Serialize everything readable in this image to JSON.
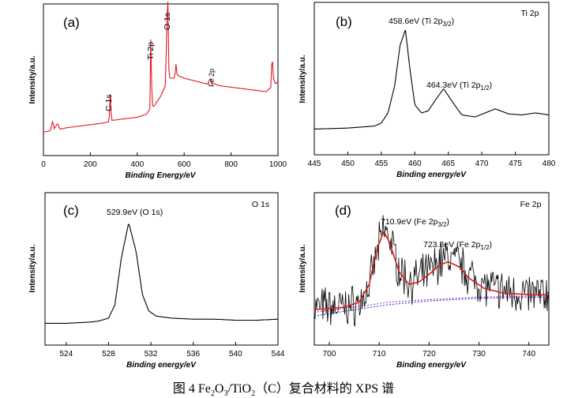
{
  "caption": {
    "prefix": "图 4 Fe",
    "s1": "2",
    "mid1": "O",
    "s2": "3",
    "mid2": "/TiO",
    "s3": "2",
    "suffix": "（C）复合材料的 XPS 谱"
  },
  "chart_data": [
    {
      "type": "line",
      "panel": "(a)",
      "xlabel": "Binding Energy/eV",
      "ylabel": "Intensity/a.u.",
      "xlim": [
        0,
        1000
      ],
      "xticks": [
        0,
        200,
        400,
        600,
        800,
        1000
      ],
      "color": "#e8141c",
      "peaks": [
        {
          "label": "C 1s",
          "x": 285
        },
        {
          "label": "Ti 2p",
          "x": 459
        },
        {
          "label": "O 1s",
          "x": 530
        },
        {
          "label": "Fe 2p",
          "x": 711
        }
      ],
      "x": [
        0,
        30,
        40,
        45,
        60,
        70,
        100,
        150,
        200,
        250,
        280,
        285,
        290,
        300,
        350,
        400,
        440,
        455,
        459,
        462,
        465,
        470,
        500,
        520,
        530,
        535,
        540,
        560,
        565,
        570,
        600,
        650,
        700,
        711,
        715,
        750,
        800,
        850,
        900,
        950,
        970,
        975,
        980,
        990,
        1000
      ],
      "y": [
        0.04,
        0.05,
        0.12,
        0.06,
        0.1,
        0.06,
        0.07,
        0.08,
        0.09,
        0.1,
        0.11,
        0.3,
        0.12,
        0.12,
        0.13,
        0.14,
        0.16,
        0.2,
        0.88,
        0.25,
        0.22,
        0.21,
        0.28,
        0.35,
        1.0,
        0.42,
        0.4,
        0.4,
        0.5,
        0.42,
        0.4,
        0.38,
        0.36,
        0.4,
        0.37,
        0.35,
        0.34,
        0.33,
        0.32,
        0.31,
        0.34,
        0.58,
        0.4,
        0.36,
        0.38
      ]
    },
    {
      "type": "line",
      "panel": "(b)",
      "corner_label": "Ti 2p",
      "xlabel": "Binding energy/eV",
      "ylabel": "Intensity/a.u.",
      "xlim": [
        445,
        480
      ],
      "xticks": [
        445,
        450,
        455,
        460,
        465,
        470,
        475,
        480
      ],
      "color": "#000000",
      "annotations": [
        {
          "text": "458.6eV (Ti 2p",
          "sub": "3/2",
          "end": ")",
          "x": 458.6
        },
        {
          "text": "464.3eV (Ti 2p",
          "sub": "1/2",
          "end": ")",
          "x": 464.3
        }
      ],
      "x": [
        445,
        450,
        454,
        455,
        456,
        457,
        457.8,
        458.6,
        459.3,
        460,
        461,
        462,
        463,
        464.3,
        465.5,
        467,
        469,
        472,
        474,
        476,
        478,
        480
      ],
      "y": [
        0.02,
        0.03,
        0.05,
        0.08,
        0.18,
        0.45,
        0.85,
        1.0,
        0.6,
        0.26,
        0.18,
        0.2,
        0.3,
        0.42,
        0.3,
        0.16,
        0.14,
        0.22,
        0.17,
        0.16,
        0.18,
        0.16
      ]
    },
    {
      "type": "line",
      "panel": "(c)",
      "corner_label": "O 1s",
      "xlabel": "Binding energy/eV",
      "ylabel": "Intensity/a.u.",
      "xlim": [
        522,
        544
      ],
      "xticks": [
        524,
        528,
        532,
        536,
        540,
        544
      ],
      "color": "#000000",
      "annotations": [
        {
          "text": "529.9eV (O 1s)",
          "x": 529.9
        }
      ],
      "x": [
        522,
        524,
        526,
        527,
        528,
        528.6,
        529.2,
        529.9,
        530.6,
        531.2,
        531.8,
        532.5,
        534,
        536,
        538,
        540,
        542,
        544
      ],
      "y": [
        0.02,
        0.02,
        0.03,
        0.04,
        0.07,
        0.2,
        0.65,
        1.0,
        0.72,
        0.3,
        0.14,
        0.09,
        0.07,
        0.06,
        0.06,
        0.05,
        0.05,
        0.06
      ]
    },
    {
      "type": "line",
      "panel": "(d)",
      "corner_label": "Fe 2p",
      "xlabel": "Binding energy/eV",
      "ylabel": "Intensity/a.u.",
      "xlim": [
        697,
        744
      ],
      "xticks": [
        700,
        710,
        720,
        730,
        740
      ],
      "annotations": [
        {
          "text": "710.9eV (Fe 2p",
          "sub": "3/2",
          "end": ")",
          "x": 710.9
        },
        {
          "text": "723.8eV (Fe 2p",
          "sub": "1/2",
          "end": ")",
          "x": 723.8
        }
      ],
      "series": [
        {
          "name": "raw",
          "color": "#000000",
          "noisy": true,
          "x": [
            697,
            700,
            703,
            706,
            708,
            709.5,
            710.9,
            712,
            714,
            716,
            718,
            720,
            722,
            723.8,
            726,
            728,
            731,
            735,
            740,
            744
          ],
          "y": [
            0.1,
            0.1,
            0.1,
            0.13,
            0.26,
            0.52,
            0.72,
            0.66,
            0.4,
            0.3,
            0.33,
            0.38,
            0.46,
            0.5,
            0.45,
            0.36,
            0.27,
            0.23,
            0.2,
            0.2
          ]
        },
        {
          "name": "fit",
          "color": "#d42020",
          "x": [
            697,
            700,
            703,
            706,
            708,
            709.5,
            710.9,
            712,
            714,
            716,
            718,
            720,
            722,
            723.8,
            726,
            728,
            731,
            735,
            740,
            744
          ],
          "y": [
            0.08,
            0.09,
            0.1,
            0.14,
            0.28,
            0.55,
            0.7,
            0.62,
            0.38,
            0.28,
            0.3,
            0.36,
            0.43,
            0.46,
            0.42,
            0.33,
            0.25,
            0.21,
            0.2,
            0.2
          ]
        },
        {
          "name": "Fe 2p3/2 component",
          "color": "#2020d0",
          "dashed": true,
          "x": [
            697,
            705,
            712,
            720,
            730,
            744
          ],
          "y": [
            0.03,
            0.08,
            0.12,
            0.15,
            0.17,
            0.18
          ]
        },
        {
          "name": "Fe 2p1/2 component",
          "color": "#b020b0",
          "dashed": true,
          "x": [
            697,
            705,
            712,
            720,
            730,
            744
          ],
          "y": [
            0.06,
            0.1,
            0.14,
            0.16,
            0.18,
            0.19
          ]
        }
      ]
    }
  ]
}
